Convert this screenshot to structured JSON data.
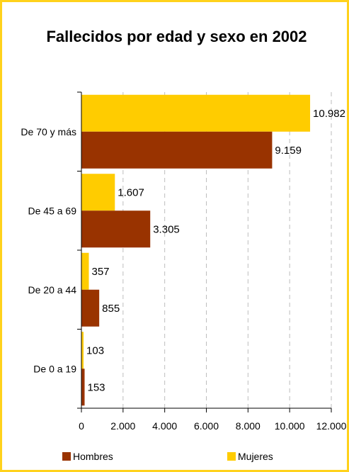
{
  "chart_data": {
    "type": "bar",
    "orientation": "horizontal",
    "title": "Fallecidos por edad y sexo en 2002",
    "categories": [
      "De 70 y más",
      "De 45 a 69",
      "De 20 a 44",
      "De 0 a 19"
    ],
    "series": [
      {
        "name": "Mujeres",
        "color": "#ffcc00",
        "values": [
          10982,
          1607,
          357,
          103
        ],
        "labels": [
          "10.982",
          "1.607",
          "357",
          "103"
        ]
      },
      {
        "name": "Hombres",
        "color": "#993300",
        "values": [
          9159,
          3305,
          855,
          153
        ],
        "labels": [
          "9.159",
          "3.305",
          "855",
          "153"
        ]
      }
    ],
    "xlim": [
      0,
      12000
    ],
    "x_ticks": [
      0,
      2000,
      4000,
      6000,
      8000,
      10000,
      12000
    ],
    "x_tick_labels": [
      "0",
      "2.000",
      "4.000",
      "6.000",
      "8.000",
      "10.000",
      "12.000"
    ],
    "grid": "vertical dashed",
    "legend": "bottom",
    "legend_order": [
      "Hombres",
      "Mujeres"
    ]
  }
}
